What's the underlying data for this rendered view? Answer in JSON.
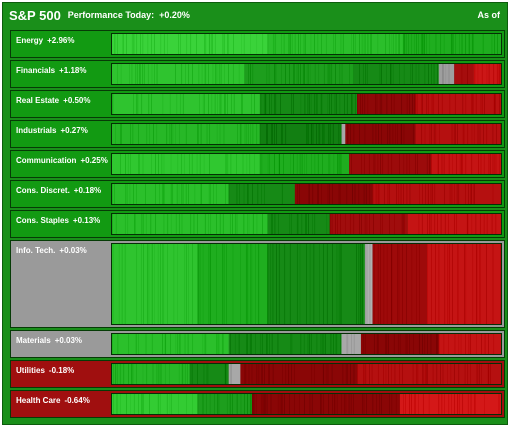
{
  "header": {
    "index": "S&P 500",
    "performance_label": "Performance Today:",
    "performance_value": "+0.20%",
    "as_of": "As of"
  },
  "colors": {
    "panel": "#1a8f1a",
    "sector_up": "#129a12",
    "sector_down": "#a00f0f",
    "sector_flat": "#9a9a9a",
    "strong_green": "#33cc33",
    "green": "#1fae1f",
    "dark_green": "#0a7a0a",
    "neutral_gray": "#a8a8a8",
    "dark_red": "#8a0606",
    "red": "#b51010",
    "strong_red": "#d81a1a"
  },
  "sectors": [
    {
      "id": "energy",
      "name": "Energy",
      "change": "+2.96%",
      "bg": "up",
      "segments": [
        {
          "c": "#3ad33a",
          "w": 40
        },
        {
          "c": "#2bbf2b",
          "w": 35
        },
        {
          "c": "#1fae1f",
          "w": 25
        }
      ]
    },
    {
      "id": "financials",
      "name": "Financials",
      "change": "+1.18%",
      "bg": "up",
      "segments": [
        {
          "c": "#2fc42f",
          "w": 34
        },
        {
          "c": "#1d9e1d",
          "w": 28
        },
        {
          "c": "#168a16",
          "w": 22
        },
        {
          "c": "#9e9e9e",
          "w": 4
        },
        {
          "c": "#a50d0d",
          "w": 5
        },
        {
          "c": "#cc1717",
          "w": 7
        }
      ]
    },
    {
      "id": "real-estate",
      "name": "Real Estate",
      "change": "+0.50%",
      "bg": "up",
      "segments": [
        {
          "c": "#2fc42f",
          "w": 38
        },
        {
          "c": "#168a16",
          "w": 25
        },
        {
          "c": "#8f0808",
          "w": 15
        },
        {
          "c": "#b91111",
          "w": 22
        }
      ]
    },
    {
      "id": "industrials",
      "name": "Industrials",
      "change": "+0.27%",
      "bg": "up",
      "segments": [
        {
          "c": "#27b827",
          "w": 38
        },
        {
          "c": "#127f12",
          "w": 21
        },
        {
          "c": "#a8a8a8",
          "w": 1
        },
        {
          "c": "#8a0606",
          "w": 18
        },
        {
          "c": "#b51010",
          "w": 22
        }
      ]
    },
    {
      "id": "communication",
      "name": "Communication",
      "change": "+0.25%",
      "bg": "up",
      "segments": [
        {
          "c": "#30c830",
          "w": 38
        },
        {
          "c": "#1fae1f",
          "w": 23
        },
        {
          "c": "#9c0b0b",
          "w": 21
        },
        {
          "c": "#c51414",
          "w": 18
        }
      ]
    },
    {
      "id": "cons-discret",
      "name": "Cons. Discret.",
      "change": "+0.18%",
      "bg": "up",
      "segments": [
        {
          "c": "#2bc02b",
          "w": 30
        },
        {
          "c": "#168a16",
          "w": 17
        },
        {
          "c": "#8a0606",
          "w": 20
        },
        {
          "c": "#b51010",
          "w": 33
        }
      ]
    },
    {
      "id": "cons-staples",
      "name": "Cons. Staples",
      "change": "+0.13%",
      "bg": "up",
      "segments": [
        {
          "c": "#2bc02b",
          "w": 40
        },
        {
          "c": "#168a16",
          "w": 16
        },
        {
          "c": "#a00d0d",
          "w": 20
        },
        {
          "c": "#c51414",
          "w": 24
        }
      ]
    },
    {
      "id": "info-tech",
      "name": "Info. Tech.",
      "change": "+0.03%",
      "bg": "flat",
      "segments": [
        {
          "c": "#2fc42f",
          "w": 22
        },
        {
          "c": "#1fae1f",
          "w": 18
        },
        {
          "c": "#168a16",
          "w": 25
        },
        {
          "c": "#b0b0b0",
          "w": 2
        },
        {
          "c": "#9e0a0a",
          "w": 14
        },
        {
          "c": "#c51414",
          "w": 19
        }
      ]
    },
    {
      "id": "materials",
      "name": "Materials",
      "change": "+0.03%",
      "bg": "flat",
      "segments": [
        {
          "c": "#2bc02b",
          "w": 30
        },
        {
          "c": "#168a16",
          "w": 29
        },
        {
          "c": "#a8a8a8",
          "w": 5
        },
        {
          "c": "#8a0606",
          "w": 20
        },
        {
          "c": "#c51414",
          "w": 16
        }
      ]
    },
    {
      "id": "utilities",
      "name": "Utilities",
      "change": "-0.18%",
      "bg": "down",
      "segments": [
        {
          "c": "#27b827",
          "w": 20
        },
        {
          "c": "#168a16",
          "w": 10
        },
        {
          "c": "#a8a8a8",
          "w": 3
        },
        {
          "c": "#8a0606",
          "w": 30
        },
        {
          "c": "#b51010",
          "w": 37
        }
      ]
    },
    {
      "id": "health-care",
      "name": "Health Care",
      "change": "-0.64%",
      "bg": "down",
      "segments": [
        {
          "c": "#33cc33",
          "w": 22
        },
        {
          "c": "#1d9e1d",
          "w": 14
        },
        {
          "c": "#8a0606",
          "w": 38
        },
        {
          "c": "#d41818",
          "w": 26
        }
      ]
    }
  ]
}
